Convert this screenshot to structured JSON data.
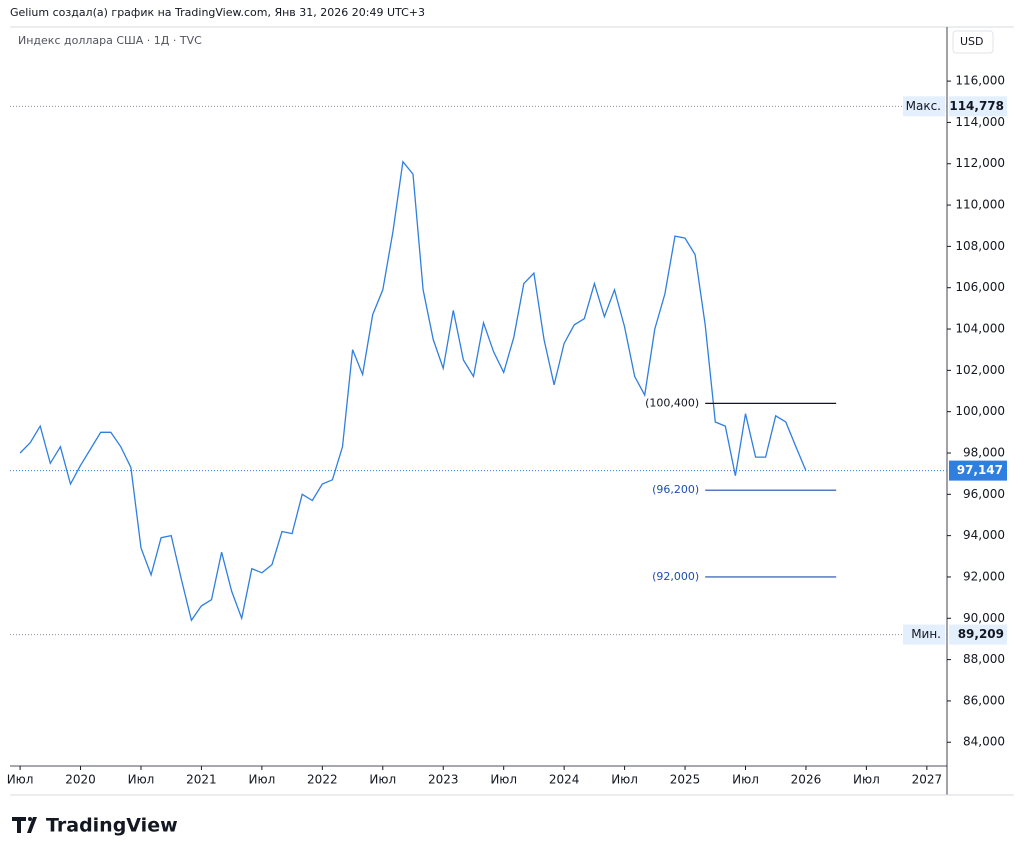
{
  "chart_data": {
    "type": "line",
    "header": "Gelium создал(а) график на TradingView.com, Янв 31, 2026 20:49 UTC+3",
    "title": "Индекс доллара США · 1Д · TVC",
    "currency": "USD",
    "brand": "TradingView",
    "color": "#2f7fe0",
    "x": [
      "2019-07",
      "2019-08",
      "2019-09",
      "2019-10",
      "2019-11",
      "2019-12",
      "2020-01",
      "2020-02",
      "2020-03",
      "2020-04",
      "2020-05",
      "2020-06",
      "2020-07",
      "2020-08",
      "2020-09",
      "2020-10",
      "2020-11",
      "2020-12",
      "2021-01",
      "2021-02",
      "2021-03",
      "2021-04",
      "2021-05",
      "2021-06",
      "2021-07",
      "2021-08",
      "2021-09",
      "2021-10",
      "2021-11",
      "2021-12",
      "2022-01",
      "2022-02",
      "2022-03",
      "2022-04",
      "2022-05",
      "2022-06",
      "2022-07",
      "2022-08",
      "2022-09",
      "2022-10",
      "2022-11",
      "2022-12",
      "2023-01",
      "2023-02",
      "2023-03",
      "2023-04",
      "2023-05",
      "2023-06",
      "2023-07",
      "2023-08",
      "2023-09",
      "2023-10",
      "2023-11",
      "2023-12",
      "2024-01",
      "2024-02",
      "2024-03",
      "2024-04",
      "2024-05",
      "2024-06",
      "2024-07",
      "2024-08",
      "2024-09",
      "2024-10",
      "2024-11",
      "2024-12",
      "2025-01",
      "2025-02",
      "2025-03",
      "2025-04",
      "2025-05",
      "2025-06",
      "2025-07",
      "2025-08",
      "2025-09",
      "2025-10",
      "2025-11",
      "2025-12",
      "2026-01"
    ],
    "values": [
      98.0,
      98.5,
      99.3,
      97.5,
      98.3,
      96.5,
      97.4,
      98.2,
      99.0,
      99.0,
      98.3,
      97.3,
      93.4,
      92.1,
      93.9,
      94.0,
      91.9,
      89.9,
      90.6,
      90.9,
      93.2,
      91.3,
      90.0,
      92.4,
      92.2,
      92.6,
      94.2,
      94.1,
      96.0,
      95.7,
      96.5,
      96.7,
      98.3,
      103.0,
      101.8,
      104.7,
      105.9,
      108.7,
      112.1,
      111.5,
      105.9,
      103.5,
      102.1,
      104.9,
      102.5,
      101.7,
      104.3,
      102.9,
      101.9,
      103.6,
      106.2,
      106.7,
      103.5,
      101.3,
      103.3,
      104.2,
      104.5,
      106.2,
      104.6,
      105.9,
      104.1,
      101.7,
      100.8,
      104.0,
      105.7,
      108.5,
      108.4,
      107.6,
      104.2,
      99.5,
      99.3,
      96.9,
      99.9,
      97.8,
      97.8,
      99.8,
      99.5,
      98.3,
      97.147
    ],
    "xlim": [
      "2019-06",
      "2027-03"
    ],
    "xticks": [
      {
        "value": "2019-07",
        "label": "Июл"
      },
      {
        "value": "2020-01",
        "label": "2020"
      },
      {
        "value": "2020-07",
        "label": "Июл"
      },
      {
        "value": "2021-01",
        "label": "2021"
      },
      {
        "value": "2021-07",
        "label": "Июл"
      },
      {
        "value": "2022-01",
        "label": "2022"
      },
      {
        "value": "2022-07",
        "label": "Июл"
      },
      {
        "value": "2023-01",
        "label": "2023"
      },
      {
        "value": "2023-07",
        "label": "Июл"
      },
      {
        "value": "2024-01",
        "label": "2024"
      },
      {
        "value": "2024-07",
        "label": "Июл"
      },
      {
        "value": "2025-01",
        "label": "2025"
      },
      {
        "value": "2025-07",
        "label": "Июл"
      },
      {
        "value": "2026-01",
        "label": "2026"
      },
      {
        "value": "2026-07",
        "label": "Июл"
      },
      {
        "value": "2027-01",
        "label": "2027"
      }
    ],
    "ylim": [
      82.85,
      118.57
    ],
    "yticks": [
      {
        "value": 84,
        "label": "84,000"
      },
      {
        "value": 86,
        "label": "86,000"
      },
      {
        "value": 88,
        "label": "88,000"
      },
      {
        "value": 90,
        "label": "90,000"
      },
      {
        "value": 92,
        "label": "92,000"
      },
      {
        "value": 94,
        "label": "94,000"
      },
      {
        "value": 96,
        "label": "96,000"
      },
      {
        "value": 98,
        "label": "98,000"
      },
      {
        "value": 100,
        "label": "100,000"
      },
      {
        "value": 102,
        "label": "102,000"
      },
      {
        "value": 104,
        "label": "104,000"
      },
      {
        "value": 106,
        "label": "106,000"
      },
      {
        "value": 108,
        "label": "108,000"
      },
      {
        "value": 110,
        "label": "110,000"
      },
      {
        "value": 112,
        "label": "112,000"
      },
      {
        "value": 114,
        "label": "114,000"
      },
      {
        "value": 116,
        "label": "116,000"
      }
    ],
    "last": {
      "value": 97.147,
      "label": "97,147"
    },
    "max": {
      "name": "Макс.",
      "value": 114.778,
      "label": "114,778"
    },
    "min": {
      "name": "Мин.",
      "value": 89.209,
      "label": "89,209"
    },
    "levels": [
      {
        "value": 100.4,
        "label": "(100,400)",
        "color": "#131722",
        "x_range": [
          "2025-03",
          "2026-04"
        ]
      },
      {
        "value": 96.2,
        "label": "(96,200)",
        "color": "#1e4fb0",
        "x_range": [
          "2025-03",
          "2026-04"
        ]
      },
      {
        "value": 92.0,
        "label": "(92,000)",
        "color": "#1e4fb0",
        "x_range": [
          "2025-03",
          "2026-04"
        ]
      }
    ]
  }
}
